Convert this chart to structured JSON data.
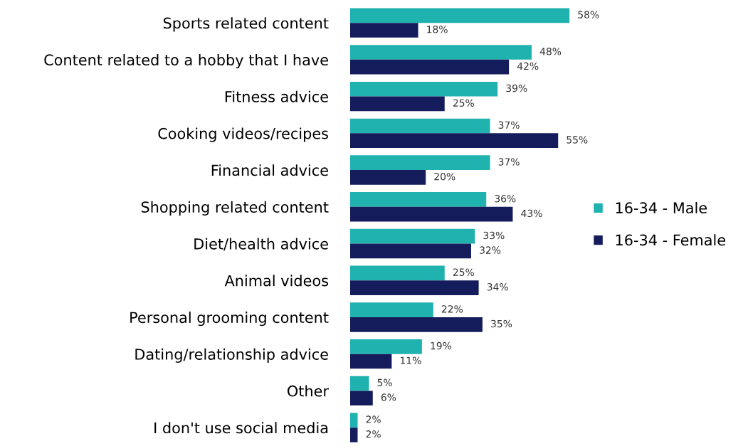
{
  "chart_data": {
    "type": "bar",
    "orientation": "horizontal",
    "tick_labels": "y",
    "legend": "right",
    "grid": false,
    "categories": [
      "Sports related content",
      "Content related to a hobby that I have",
      "Fitness advice",
      "Cooking videos/recipes",
      "Financial advice",
      "Shopping related content",
      "Diet/health advice",
      "Animal videos",
      "Personal grooming content",
      "Dating/relationship advice",
      "Other",
      "I don't use social media"
    ],
    "series": [
      {
        "name": "16-34 - Male",
        "color": "#20b2ae",
        "values": [
          58,
          48,
          39,
          37,
          37,
          36,
          33,
          25,
          22,
          19,
          5,
          2
        ],
        "value_labels": [
          "58%",
          "48%",
          "39%",
          "37%",
          "37%",
          "36%",
          "33%",
          "25%",
          "22%",
          "19%",
          "5%",
          "2%"
        ]
      },
      {
        "name": "16-34 - Female",
        "color": "#141c5b",
        "values": [
          18,
          42,
          25,
          55,
          20,
          43,
          32,
          34,
          35,
          11,
          6,
          2
        ],
        "value_labels": [
          "18%",
          "42%",
          "25%",
          "55%",
          "20%",
          "43%",
          "32%",
          "34%",
          "35%",
          "11%",
          "6%",
          "2%"
        ]
      }
    ]
  }
}
